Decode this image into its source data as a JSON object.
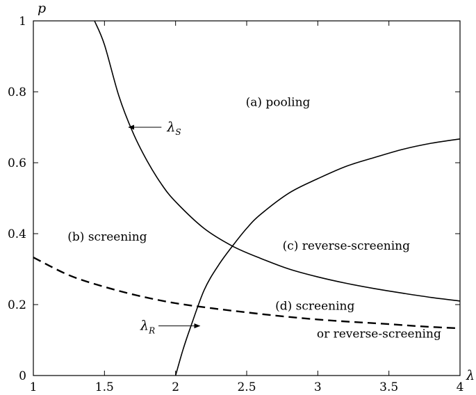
{
  "chart_data": {
    "type": "line",
    "title": "",
    "xlabel": "λ",
    "ylabel": "p",
    "xlim": [
      1,
      4
    ],
    "ylim": [
      0,
      1
    ],
    "grid": false,
    "x_ticks": [
      1,
      1.5,
      2,
      2.5,
      3,
      3.5,
      4
    ],
    "x_tick_labels": [
      "1",
      "1.5",
      "2",
      "2.5",
      "3",
      "3.5",
      "4"
    ],
    "y_ticks": [
      0,
      0.2,
      0.4,
      0.6,
      0.8,
      1
    ],
    "y_tick_labels": [
      "0",
      "0.2",
      "0.4",
      "0.6",
      "0.8",
      "1"
    ],
    "series": [
      {
        "name": "λS",
        "style": "solid",
        "x": [
          1.43,
          1.5,
          1.6,
          1.7,
          1.8,
          1.9,
          2.0,
          2.2,
          2.4,
          2.6,
          2.8,
          3.0,
          3.2,
          3.4,
          3.6,
          3.8,
          4.0
        ],
        "y": [
          1.0,
          0.933,
          0.79,
          0.685,
          0.605,
          0.54,
          0.49,
          0.415,
          0.365,
          0.33,
          0.3,
          0.278,
          0.26,
          0.245,
          0.232,
          0.22,
          0.21
        ]
      },
      {
        "name": "λR",
        "style": "solid",
        "x": [
          2.0,
          2.05,
          2.1,
          2.2,
          2.3,
          2.4,
          2.5,
          2.6,
          2.8,
          3.0,
          3.2,
          3.4,
          3.6,
          3.8,
          4.0
        ],
        "y": [
          0.0,
          0.07,
          0.13,
          0.24,
          0.31,
          0.365,
          0.415,
          0.455,
          0.515,
          0.555,
          0.59,
          0.615,
          0.638,
          0.655,
          0.667
        ]
      },
      {
        "name": "",
        "style": "dashed",
        "x": [
          1.0,
          1.25,
          1.5,
          1.75,
          2.0,
          2.25,
          2.5,
          2.75,
          3.0,
          3.25,
          3.5,
          3.75,
          4.0
        ],
        "y": [
          0.333,
          0.283,
          0.25,
          0.224,
          0.204,
          0.19,
          0.178,
          0.167,
          0.158,
          0.151,
          0.145,
          0.138,
          0.133
        ]
      }
    ],
    "annotations": [
      {
        "text": "(a) pooling",
        "x": 2.72,
        "y": 0.76
      },
      {
        "text": "(b) screening",
        "x": 1.52,
        "y": 0.38
      },
      {
        "text": "(c) reverse-screening",
        "x": 3.2,
        "y": 0.355
      },
      {
        "text": "(d) screening",
        "x": 2.98,
        "y": 0.185
      },
      {
        "text": "or reverse-screening",
        "x": 3.43,
        "y": 0.107
      }
    ],
    "curve_labels": [
      {
        "main": "λ",
        "sub": "S",
        "arrow_to": [
          1.67,
          0.7
        ],
        "label_at": [
          1.93,
          0.7
        ]
      },
      {
        "main": "λ",
        "sub": "R",
        "arrow_to": [
          2.17,
          0.14
        ],
        "label_at": [
          1.87,
          0.14
        ]
      }
    ]
  }
}
